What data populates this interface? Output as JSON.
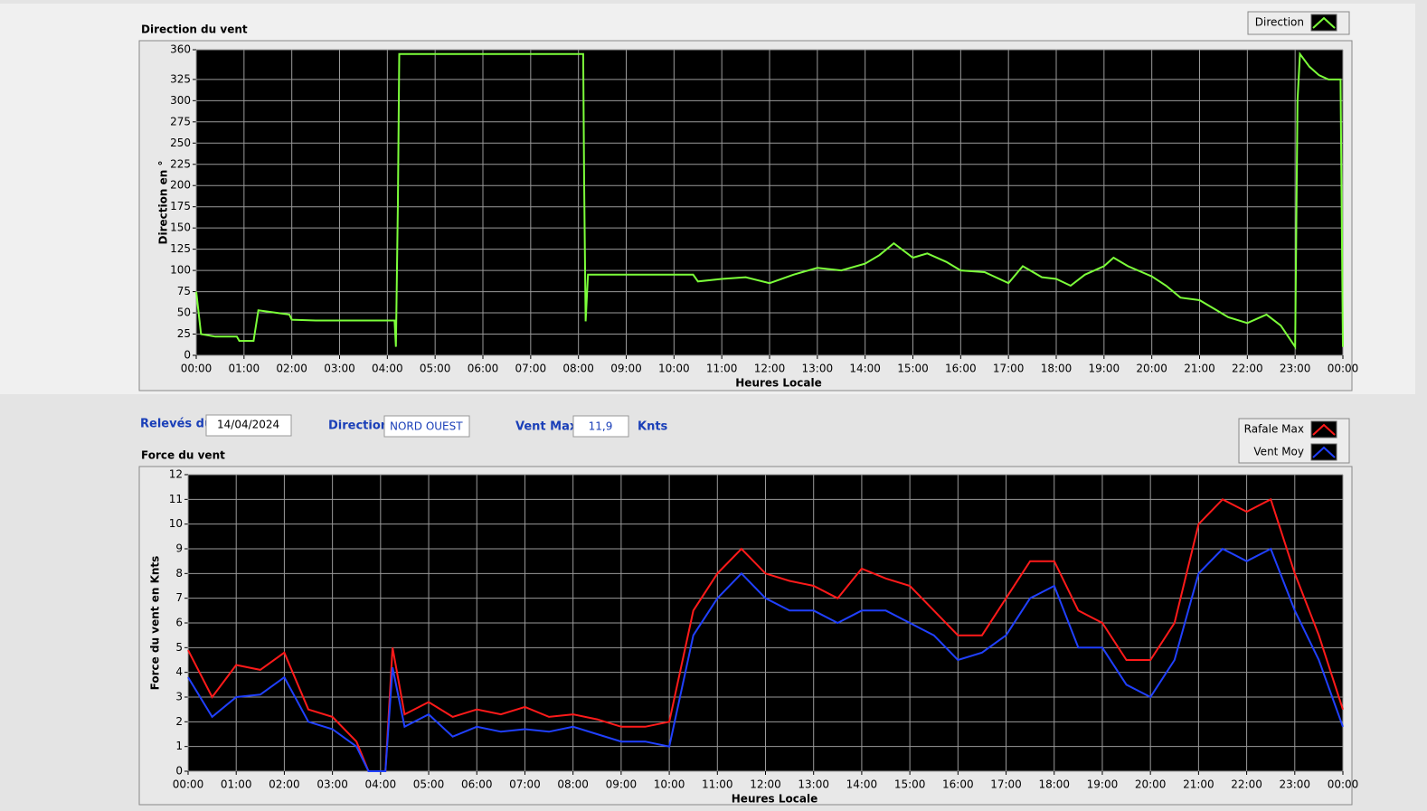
{
  "controls": {
    "date_label": "Relevés du",
    "date": "14/04/2024",
    "direction_label": "Direction",
    "direction": "NORD OUEST",
    "vent_max_label": "Vent Max",
    "vent_max": "11,9",
    "unit": "Knts"
  },
  "chart_data": [
    {
      "type": "line",
      "title": "Direction du vent",
      "y_label": "Direction en °",
      "x_label": "Heures Locale",
      "x": [
        0,
        0.1,
        0.4,
        0.85,
        0.9,
        1.2,
        1.3,
        1.7,
        1.95,
        2.0,
        2.5,
        3.5,
        4.15,
        4.18,
        4.22,
        4.25,
        5,
        6,
        7,
        8.1,
        8.12,
        8.15,
        8.2,
        9,
        10,
        10.4,
        10.5,
        11,
        11.5,
        12,
        12.5,
        13,
        13.5,
        14,
        14.3,
        14.6,
        15,
        15.3,
        15.7,
        16,
        16.5,
        17,
        17.3,
        17.7,
        18,
        18.3,
        18.6,
        19,
        19.2,
        19.5,
        20,
        20.3,
        20.6,
        21,
        21.3,
        21.6,
        22,
        22.4,
        22.7,
        23,
        23.05,
        23.1,
        23.3,
        23.5,
        23.7,
        23.95,
        24
      ],
      "series": [
        {
          "name": "Direction",
          "color": "#7cff3a",
          "values": [
            75,
            25,
            22,
            22,
            17,
            17,
            53,
            50,
            48,
            42,
            41,
            41,
            41,
            10,
            180,
            355,
            355,
            355,
            355,
            355,
            200,
            40,
            95,
            95,
            95,
            95,
            87,
            90,
            92,
            85,
            95,
            103,
            100,
            108,
            118,
            132,
            115,
            120,
            110,
            100,
            98,
            85,
            105,
            92,
            90,
            82,
            95,
            105,
            115,
            105,
            93,
            82,
            68,
            65,
            55,
            45,
            38,
            48,
            35,
            10,
            300,
            355,
            340,
            330,
            325,
            325,
            10
          ]
        }
      ],
      "xlim": [
        0,
        24
      ],
      "xticks": [
        {
          "value": 0,
          "label": "00:00"
        },
        {
          "value": 1,
          "label": "01:00"
        },
        {
          "value": 2,
          "label": "02:00"
        },
        {
          "value": 3,
          "label": "03:00"
        },
        {
          "value": 4,
          "label": "04:00"
        },
        {
          "value": 5,
          "label": "05:00"
        },
        {
          "value": 6,
          "label": "06:00"
        },
        {
          "value": 7,
          "label": "07:00"
        },
        {
          "value": 8,
          "label": "08:00"
        },
        {
          "value": 9,
          "label": "09:00"
        },
        {
          "value": 10,
          "label": "10:00"
        },
        {
          "value": 11,
          "label": "11:00"
        },
        {
          "value": 12,
          "label": "12:00"
        },
        {
          "value": 13,
          "label": "13:00"
        },
        {
          "value": 14,
          "label": "14:00"
        },
        {
          "value": 15,
          "label": "15:00"
        },
        {
          "value": 16,
          "label": "16:00"
        },
        {
          "value": 17,
          "label": "17:00"
        },
        {
          "value": 18,
          "label": "18:00"
        },
        {
          "value": 19,
          "label": "19:00"
        },
        {
          "value": 20,
          "label": "20:00"
        },
        {
          "value": 21,
          "label": "21:00"
        },
        {
          "value": 22,
          "label": "22:00"
        },
        {
          "value": 23,
          "label": "23:00"
        },
        {
          "value": 24,
          "label": "00:00"
        }
      ],
      "ylim": [
        0,
        360
      ],
      "yticks": [
        0,
        25,
        50,
        75,
        100,
        125,
        150,
        175,
        200,
        225,
        250,
        275,
        300,
        325,
        360
      ],
      "grid": true
    },
    {
      "type": "line",
      "title": "Force du vent",
      "y_label": "Force du vent en Knts",
      "x_label": "Heures Locale",
      "x": [
        0,
        0.5,
        1,
        1.5,
        2,
        2.5,
        3,
        3.5,
        3.75,
        4.1,
        4.25,
        4.5,
        5,
        5.5,
        6,
        6.5,
        7,
        7.5,
        8,
        8.5,
        9,
        9.5,
        10,
        10.5,
        11,
        11.5,
        12,
        12.5,
        13,
        13.5,
        14,
        14.5,
        15,
        15.5,
        16,
        16.5,
        17,
        17.5,
        18,
        18.5,
        19,
        19.5,
        20,
        20.5,
        21,
        21.5,
        22,
        22.5,
        23,
        23.5,
        24
      ],
      "series": [
        {
          "name": "Rafale Max",
          "color": "#ff1a1a",
          "values": [
            4.9,
            3,
            4.3,
            4.1,
            4.8,
            2.5,
            2.2,
            1.2,
            0,
            0,
            5,
            2.3,
            2.8,
            2.2,
            2.5,
            2.3,
            2.6,
            2.2,
            2.3,
            2.1,
            1.8,
            1.8,
            2,
            6.5,
            8,
            9,
            8,
            7.7,
            7.5,
            7,
            8.2,
            7.8,
            7.5,
            6.5,
            5.5,
            5.5,
            7,
            8.5,
            8.5,
            6.5,
            6,
            4.5,
            4.5,
            6,
            10,
            11,
            10.5,
            11,
            8,
            5.5,
            2.5
          ]
        },
        {
          "name": "Vent Moy",
          "color": "#2040ff",
          "values": [
            3.8,
            2.2,
            3,
            3.1,
            3.8,
            2,
            1.7,
            1,
            0,
            0,
            4.2,
            1.8,
            2.3,
            1.4,
            1.8,
            1.6,
            1.7,
            1.6,
            1.8,
            1.5,
            1.2,
            1.2,
            1,
            5.5,
            7,
            8,
            7,
            6.5,
            6.5,
            6,
            6.5,
            6.5,
            6,
            5.5,
            4.5,
            4.8,
            5.5,
            7,
            7.5,
            5,
            5,
            3.5,
            3,
            4.5,
            8,
            9,
            8.5,
            9,
            6.5,
            4.5,
            1.8
          ]
        }
      ],
      "xlim": [
        0,
        24
      ],
      "xticks": [
        {
          "value": 0,
          "label": "00:00"
        },
        {
          "value": 1,
          "label": "01:00"
        },
        {
          "value": 2,
          "label": "02:00"
        },
        {
          "value": 3,
          "label": "03:00"
        },
        {
          "value": 4,
          "label": "04:00"
        },
        {
          "value": 5,
          "label": "05:00"
        },
        {
          "value": 6,
          "label": "06:00"
        },
        {
          "value": 7,
          "label": "07:00"
        },
        {
          "value": 8,
          "label": "08:00"
        },
        {
          "value": 9,
          "label": "09:00"
        },
        {
          "value": 10,
          "label": "10:00"
        },
        {
          "value": 11,
          "label": "11:00"
        },
        {
          "value": 12,
          "label": "12:00"
        },
        {
          "value": 13,
          "label": "13:00"
        },
        {
          "value": 14,
          "label": "14:00"
        },
        {
          "value": 15,
          "label": "15:00"
        },
        {
          "value": 16,
          "label": "16:00"
        },
        {
          "value": 17,
          "label": "17:00"
        },
        {
          "value": 18,
          "label": "18:00"
        },
        {
          "value": 19,
          "label": "19:00"
        },
        {
          "value": 20,
          "label": "20:00"
        },
        {
          "value": 21,
          "label": "21:00"
        },
        {
          "value": 22,
          "label": "22:00"
        },
        {
          "value": 23,
          "label": "23:00"
        },
        {
          "value": 24,
          "label": "00:00"
        }
      ],
      "ylim": [
        0,
        12
      ],
      "yticks": [
        0,
        1,
        2,
        3,
        4,
        5,
        6,
        7,
        8,
        9,
        10,
        11,
        12
      ],
      "grid": true
    }
  ]
}
